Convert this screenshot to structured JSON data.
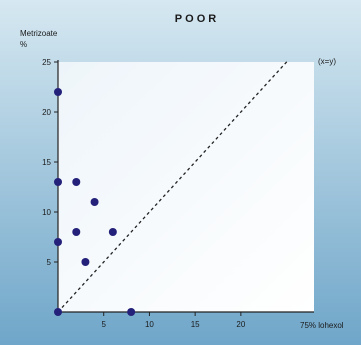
{
  "chart_data": {
    "type": "scatter",
    "title": "POOR",
    "ylabel": "Metrizoate",
    "ylabel_unit": "%",
    "xlabel": "75% lohexol",
    "reference_line_label": "(x=y)",
    "xlim": [
      0,
      28
    ],
    "ylim": [
      0,
      25
    ],
    "x_ticks": [
      "5",
      "10",
      "15",
      "20"
    ],
    "y_ticks": [
      "5",
      "10",
      "15",
      "20",
      "25"
    ],
    "points": [
      {
        "x": 0,
        "y": 22
      },
      {
        "x": 0,
        "y": 13
      },
      {
        "x": 0,
        "y": 7
      },
      {
        "x": 0,
        "y": 0
      },
      {
        "x": 2,
        "y": 13
      },
      {
        "x": 2,
        "y": 8
      },
      {
        "x": 3,
        "y": 5
      },
      {
        "x": 4,
        "y": 11
      },
      {
        "x": 6,
        "y": 8
      },
      {
        "x": 8,
        "y": 0
      }
    ],
    "colors": {
      "point": "#24217a",
      "background_top": "#cfe3ee",
      "background_bottom": "#6fa6c9",
      "plot_area": "#f7fbfd",
      "reference_line": "#222222"
    }
  }
}
